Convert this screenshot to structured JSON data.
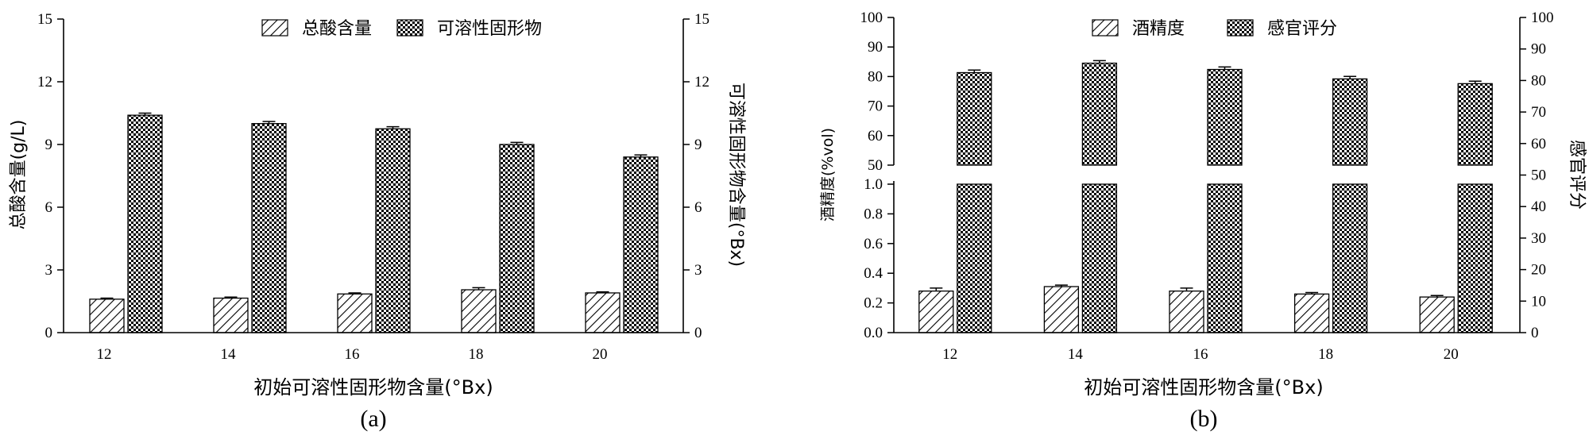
{
  "chart_data": [
    {
      "type": "bar",
      "panel_label": "(a)",
      "xlabel": "初始可溶性固形物含量(°Bx)",
      "categories": [
        "12",
        "14",
        "16",
        "18",
        "20"
      ],
      "left_axis": {
        "label": "总酸含量(g/L)",
        "ylim": [
          0,
          15
        ],
        "ticks": [
          "0",
          "3",
          "6",
          "9",
          "12",
          "15"
        ]
      },
      "right_axis": {
        "label": "可溶性固形物含量(°Bx)",
        "ylim": [
          0,
          15
        ],
        "ticks": [
          "0",
          "3",
          "6",
          "9",
          "12",
          "15"
        ]
      },
      "series": [
        {
          "name": "总酸含量",
          "axis": "left",
          "pattern": "diagonal",
          "values": [
            1.6,
            1.65,
            1.85,
            2.05,
            1.9
          ],
          "errors": [
            0.05,
            0.05,
            0.05,
            0.1,
            0.05
          ]
        },
        {
          "name": "可溶性固形物",
          "axis": "right",
          "pattern": "checker",
          "values": [
            10.4,
            10.0,
            9.75,
            9.0,
            8.4
          ],
          "errors": [
            0.1,
            0.1,
            0.1,
            0.1,
            0.1
          ]
        }
      ],
      "legend": "top-center"
    },
    {
      "type": "bar",
      "panel_label": "(b)",
      "xlabel": "初始可溶性固形物含量(°Bx)",
      "categories": [
        "12",
        "14",
        "16",
        "18",
        "20"
      ],
      "left_axis": {
        "label": "酒精度(%vol)",
        "broken": true,
        "lower_ylim": [
          0,
          1.0
        ],
        "lower_ticks": [
          "0.0",
          "0.2",
          "0.4",
          "0.6",
          "0.8",
          "1.0"
        ],
        "upper_ylim": [
          50,
          100
        ],
        "upper_ticks": [
          "50",
          "60",
          "70",
          "80",
          "90",
          "100"
        ]
      },
      "right_axis": {
        "label": "感官评分",
        "ylim": [
          0,
          100
        ],
        "ticks": [
          "0",
          "10",
          "20",
          "30",
          "40",
          "50",
          "60",
          "70",
          "80",
          "90",
          "100"
        ]
      },
      "series": [
        {
          "name": "酒精度",
          "axis": "left",
          "pattern": "diagonal",
          "values": [
            0.28,
            0.31,
            0.28,
            0.26,
            0.24
          ],
          "errors": [
            0.02,
            0.01,
            0.02,
            0.01,
            0.01
          ]
        },
        {
          "name": "感官评分",
          "axis": "right",
          "pattern": "checker",
          "values": [
            82.5,
            85.5,
            83.5,
            80.5,
            79
          ],
          "errors": [
            0.8,
            0.8,
            0.8,
            0.8,
            0.8
          ]
        }
      ],
      "legend": "top-center"
    }
  ]
}
